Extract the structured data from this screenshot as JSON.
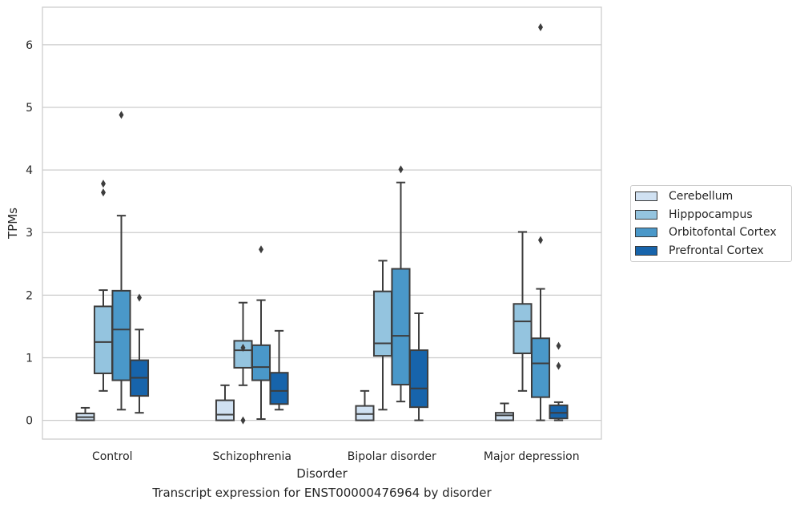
{
  "chart_data": {
    "type": "box",
    "title": "",
    "caption": "Transcript expression for ENST00000476964 by disorder",
    "xlabel": "Disorder",
    "ylabel": "TPMs",
    "ylim": [
      -0.3,
      6.6
    ],
    "yticks": [
      0,
      1,
      2,
      3,
      4,
      5,
      6
    ],
    "grid": true,
    "legend_position": "right",
    "categories": [
      "Control",
      "Schizophrenia",
      "Bipolar disorder",
      "Major depression"
    ],
    "series": [
      {
        "name": "Cerebellum",
        "color": "#d0e1f2",
        "boxes": [
          {
            "whisker_low": 0.0,
            "q1": 0.0,
            "median": 0.05,
            "q3": 0.11,
            "whisker_high": 0.2,
            "outliers": []
          },
          {
            "whisker_low": 0.0,
            "q1": 0.0,
            "median": 0.09,
            "q3": 0.32,
            "whisker_high": 0.56,
            "outliers": []
          },
          {
            "whisker_low": 0.0,
            "q1": 0.0,
            "median": 0.1,
            "q3": 0.23,
            "whisker_high": 0.47,
            "outliers": []
          },
          {
            "whisker_low": 0.0,
            "q1": 0.0,
            "median": 0.08,
            "q3": 0.12,
            "whisker_high": 0.27,
            "outliers": []
          }
        ]
      },
      {
        "name": "Hipppocampus",
        "color": "#94c4df",
        "boxes": [
          {
            "whisker_low": 0.47,
            "q1": 0.75,
            "median": 1.25,
            "q3": 1.82,
            "whisker_high": 2.08,
            "outliers": [
              3.64,
              3.78
            ]
          },
          {
            "whisker_low": 0.56,
            "q1": 0.84,
            "median": 1.12,
            "q3": 1.27,
            "whisker_high": 1.88,
            "outliers": [
              1.16,
              0.0
            ]
          },
          {
            "whisker_low": 0.17,
            "q1": 1.03,
            "median": 1.23,
            "q3": 2.06,
            "whisker_high": 2.55,
            "outliers": []
          },
          {
            "whisker_low": 0.47,
            "q1": 1.07,
            "median": 1.58,
            "q3": 1.86,
            "whisker_high": 3.01,
            "outliers": []
          }
        ]
      },
      {
        "name": "Orbitofontal Cortex",
        "color": "#4a98c9",
        "boxes": [
          {
            "whisker_low": 0.17,
            "q1": 0.64,
            "median": 1.45,
            "q3": 2.07,
            "whisker_high": 3.27,
            "outliers": [
              4.88
            ]
          },
          {
            "whisker_low": 0.02,
            "q1": 0.64,
            "median": 0.85,
            "q3": 1.2,
            "whisker_high": 1.92,
            "outliers": [
              2.73
            ]
          },
          {
            "whisker_low": 0.3,
            "q1": 0.57,
            "median": 1.35,
            "q3": 2.42,
            "whisker_high": 3.8,
            "outliers": [
              4.01
            ]
          },
          {
            "whisker_low": 0.0,
            "q1": 0.37,
            "median": 0.91,
            "q3": 1.31,
            "whisker_high": 2.1,
            "outliers": [
              2.88,
              6.28
            ]
          }
        ]
      },
      {
        "name": "Prefrontal Cortex",
        "color": "#1764ab",
        "boxes": [
          {
            "whisker_low": 0.12,
            "q1": 0.39,
            "median": 0.68,
            "q3": 0.96,
            "whisker_high": 1.45,
            "outliers": [
              1.96
            ]
          },
          {
            "whisker_low": 0.17,
            "q1": 0.26,
            "median": 0.47,
            "q3": 0.76,
            "whisker_high": 1.43,
            "outliers": []
          },
          {
            "whisker_low": 0.0,
            "q1": 0.21,
            "median": 0.51,
            "q3": 1.12,
            "whisker_high": 1.71,
            "outliers": []
          },
          {
            "whisker_low": 0.0,
            "q1": 0.03,
            "median": 0.12,
            "q3": 0.24,
            "whisker_high": 0.29,
            "outliers": [
              1.19,
              0.87
            ]
          }
        ]
      }
    ]
  }
}
